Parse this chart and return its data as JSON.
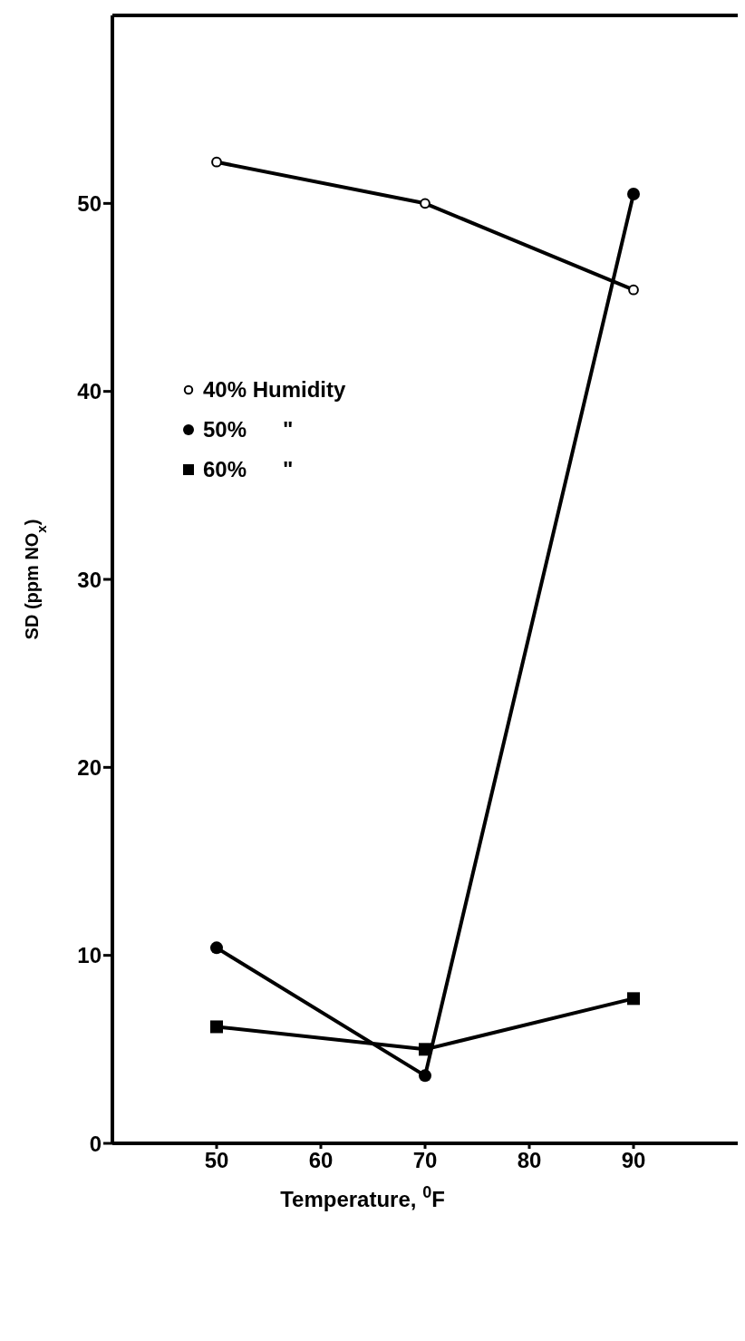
{
  "chart_data": {
    "type": "line",
    "xlabel": "Temperature, $^{0}$F",
    "ylabel": "SD (ppm NO$_{x}$)",
    "x": [
      50,
      70,
      90
    ],
    "series": [
      {
        "name": "40% Humidity",
        "color": "#000000",
        "marker": "open_circle",
        "values": [
          52.2,
          50.0,
          45.4
        ]
      },
      {
        "name": "50%      \"",
        "color": "#000000",
        "marker": "circle",
        "values": [
          10.4,
          3.6,
          50.5
        ]
      },
      {
        "name": "60%      \"",
        "color": "#000000",
        "marker": "square",
        "values": [
          6.2,
          5.0,
          7.7
        ]
      }
    ],
    "xlim": [
      40,
      100
    ],
    "xticks": [
      50,
      60,
      70,
      80,
      90
    ],
    "ylim": [
      0,
      60
    ],
    "yticks": [
      0,
      10,
      20,
      30,
      40,
      50
    ],
    "grid": false,
    "legend": "top left",
    "line_style": "solid"
  }
}
